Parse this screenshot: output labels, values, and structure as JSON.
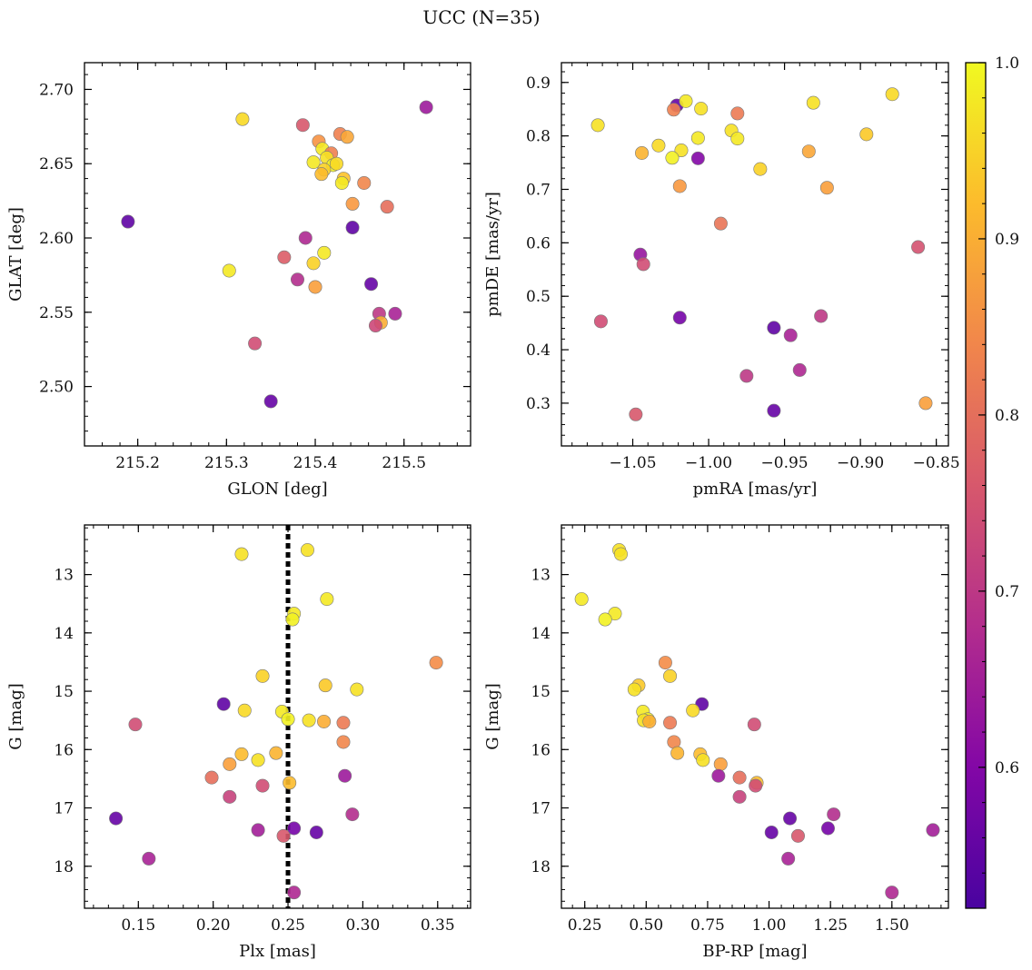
{
  "figure": {
    "title": "UCC (N=35)"
  },
  "colorbar": {
    "min": 0.52,
    "max": 1.0,
    "ticks": [
      0.6,
      0.7,
      0.8,
      0.9,
      1.0
    ],
    "tick_labels": [
      "0.6",
      "0.7",
      "0.8",
      "0.9",
      "1.0"
    ],
    "colormap": "plasma"
  },
  "chart_data": [
    {
      "type": "scatter",
      "id": "glon-glat",
      "title": "",
      "xlabel": "GLON [deg]",
      "ylabel": "GLAT [deg]",
      "xlim": [
        215.14,
        215.575
      ],
      "ylim": [
        2.46,
        2.718
      ],
      "xticks": [
        215.2,
        215.3,
        215.4,
        215.5
      ],
      "xtick_labels": [
        "215.2",
        "215.3",
        "215.4",
        "215.5"
      ],
      "yticks": [
        2.5,
        2.55,
        2.6,
        2.65,
        2.7
      ],
      "ytick_labels": [
        "2.50",
        "2.55",
        "2.60",
        "2.65",
        "2.70"
      ],
      "invert_y": false,
      "grid": false,
      "points": [
        {
          "x": 215.318,
          "y": 2.68,
          "c": 0.96
        },
        {
          "x": 215.386,
          "y": 2.676,
          "c": 0.76
        },
        {
          "x": 215.525,
          "y": 2.688,
          "c": 0.64
        },
        {
          "x": 215.428,
          "y": 2.67,
          "c": 0.83
        },
        {
          "x": 215.404,
          "y": 2.665,
          "c": 0.86
        },
        {
          "x": 215.436,
          "y": 2.668,
          "c": 0.89
        },
        {
          "x": 215.408,
          "y": 2.66,
          "c": 0.98
        },
        {
          "x": 215.418,
          "y": 2.657,
          "c": 0.83
        },
        {
          "x": 215.398,
          "y": 2.651,
          "c": 0.98
        },
        {
          "x": 215.413,
          "y": 2.654,
          "c": 0.97
        },
        {
          "x": 215.42,
          "y": 2.649,
          "c": 0.99
        },
        {
          "x": 215.424,
          "y": 2.65,
          "c": 0.96
        },
        {
          "x": 215.41,
          "y": 2.646,
          "c": 0.95
        },
        {
          "x": 215.407,
          "y": 2.643,
          "c": 0.92
        },
        {
          "x": 215.432,
          "y": 2.64,
          "c": 0.93
        },
        {
          "x": 215.43,
          "y": 2.637,
          "c": 0.98
        },
        {
          "x": 215.455,
          "y": 2.637,
          "c": 0.84
        },
        {
          "x": 215.442,
          "y": 2.623,
          "c": 0.87
        },
        {
          "x": 215.481,
          "y": 2.621,
          "c": 0.8
        },
        {
          "x": 215.189,
          "y": 2.611,
          "c": 0.55
        },
        {
          "x": 215.442,
          "y": 2.607,
          "c": 0.55
        },
        {
          "x": 215.389,
          "y": 2.6,
          "c": 0.67
        },
        {
          "x": 215.41,
          "y": 2.59,
          "c": 0.98
        },
        {
          "x": 215.365,
          "y": 2.587,
          "c": 0.77
        },
        {
          "x": 215.398,
          "y": 2.583,
          "c": 0.95
        },
        {
          "x": 215.303,
          "y": 2.578,
          "c": 0.98
        },
        {
          "x": 215.38,
          "y": 2.572,
          "c": 0.68
        },
        {
          "x": 215.4,
          "y": 2.567,
          "c": 0.88
        },
        {
          "x": 215.463,
          "y": 2.569,
          "c": 0.56
        },
        {
          "x": 215.472,
          "y": 2.549,
          "c": 0.7
        },
        {
          "x": 215.49,
          "y": 2.549,
          "c": 0.66
        },
        {
          "x": 215.474,
          "y": 2.543,
          "c": 0.9
        },
        {
          "x": 215.468,
          "y": 2.541,
          "c": 0.73
        },
        {
          "x": 215.332,
          "y": 2.529,
          "c": 0.74
        },
        {
          "x": 215.35,
          "y": 2.49,
          "c": 0.56
        }
      ]
    },
    {
      "type": "scatter",
      "id": "pm",
      "title": "",
      "xlabel": "pmRA [mas/yr]",
      "ylabel": "pmDE [mas/yr]",
      "xlim": [
        -1.097,
        -0.842
      ],
      "ylim": [
        0.22,
        0.937
      ],
      "xticks": [
        -1.05,
        -1.0,
        -0.95,
        -0.9,
        -0.85
      ],
      "xtick_labels": [
        "−1.05",
        "−1.00",
        "−0.95",
        "−0.90",
        "−0.85"
      ],
      "yticks": [
        0.3,
        0.4,
        0.5,
        0.6,
        0.7,
        0.8,
        0.9
      ],
      "ytick_labels": [
        "0.3",
        "0.4",
        "0.5",
        "0.6",
        "0.7",
        "0.8",
        "0.9"
      ],
      "invert_y": false,
      "grid": false,
      "points": [
        {
          "x": -1.021,
          "y": 0.857,
          "c": 0.56
        },
        {
          "x": -1.015,
          "y": 0.865,
          "c": 0.98
        },
        {
          "x": -1.023,
          "y": 0.849,
          "c": 0.83
        },
        {
          "x": -1.005,
          "y": 0.851,
          "c": 0.97
        },
        {
          "x": -0.981,
          "y": 0.842,
          "c": 0.82
        },
        {
          "x": -0.931,
          "y": 0.862,
          "c": 0.97
        },
        {
          "x": -0.879,
          "y": 0.878,
          "c": 0.96
        },
        {
          "x": -1.073,
          "y": 0.82,
          "c": 0.97
        },
        {
          "x": -0.985,
          "y": 0.81,
          "c": 0.97
        },
        {
          "x": -0.896,
          "y": 0.803,
          "c": 0.94
        },
        {
          "x": -1.007,
          "y": 0.796,
          "c": 0.98
        },
        {
          "x": -0.981,
          "y": 0.795,
          "c": 0.98
        },
        {
          "x": -1.033,
          "y": 0.782,
          "c": 0.96
        },
        {
          "x": -1.018,
          "y": 0.773,
          "c": 0.97
        },
        {
          "x": -1.044,
          "y": 0.768,
          "c": 0.91
        },
        {
          "x": -0.934,
          "y": 0.771,
          "c": 0.89
        },
        {
          "x": -1.024,
          "y": 0.759,
          "c": 0.99
        },
        {
          "x": -1.007,
          "y": 0.758,
          "c": 0.6
        },
        {
          "x": -0.966,
          "y": 0.738,
          "c": 0.95
        },
        {
          "x": -1.019,
          "y": 0.706,
          "c": 0.87
        },
        {
          "x": -0.922,
          "y": 0.703,
          "c": 0.88
        },
        {
          "x": -0.992,
          "y": 0.636,
          "c": 0.81
        },
        {
          "x": -0.862,
          "y": 0.592,
          "c": 0.75
        },
        {
          "x": -1.045,
          "y": 0.578,
          "c": 0.63
        },
        {
          "x": -1.043,
          "y": 0.56,
          "c": 0.74
        },
        {
          "x": -0.926,
          "y": 0.463,
          "c": 0.7
        },
        {
          "x": -1.019,
          "y": 0.46,
          "c": 0.58
        },
        {
          "x": -1.071,
          "y": 0.453,
          "c": 0.74
        },
        {
          "x": -0.957,
          "y": 0.441,
          "c": 0.55
        },
        {
          "x": -0.946,
          "y": 0.427,
          "c": 0.66
        },
        {
          "x": -0.94,
          "y": 0.362,
          "c": 0.67
        },
        {
          "x": -0.975,
          "y": 0.351,
          "c": 0.7
        },
        {
          "x": -0.857,
          "y": 0.3,
          "c": 0.88
        },
        {
          "x": -0.957,
          "y": 0.286,
          "c": 0.56
        },
        {
          "x": -1.048,
          "y": 0.279,
          "c": 0.76
        }
      ]
    },
    {
      "type": "scatter",
      "id": "plx-g",
      "title": "",
      "xlabel": "Plx [mas]",
      "ylabel": "G [mag]",
      "xlim": [
        0.114,
        0.372
      ],
      "ylim": [
        18.72,
        12.15
      ],
      "xticks": [
        0.15,
        0.2,
        0.25,
        0.3,
        0.35
      ],
      "xtick_labels": [
        "0.15",
        "0.20",
        "0.25",
        "0.30",
        "0.35"
      ],
      "yticks": [
        13,
        14,
        15,
        16,
        17,
        18
      ],
      "ytick_labels": [
        "13",
        "14",
        "15",
        "16",
        "17",
        "18"
      ],
      "invert_y": true,
      "grid": false,
      "vline": {
        "x": 0.25,
        "style": "dotted",
        "color": "#000000"
      },
      "points": [
        {
          "x": 0.263,
          "y": 12.58,
          "c": 0.97
        },
        {
          "x": 0.219,
          "y": 12.65,
          "c": 0.97
        },
        {
          "x": 0.276,
          "y": 13.42,
          "c": 0.98
        },
        {
          "x": 0.254,
          "y": 13.67,
          "c": 0.98
        },
        {
          "x": 0.253,
          "y": 13.77,
          "c": 0.99
        },
        {
          "x": 0.349,
          "y": 14.51,
          "c": 0.85
        },
        {
          "x": 0.233,
          "y": 14.74,
          "c": 0.95
        },
        {
          "x": 0.275,
          "y": 14.9,
          "c": 0.94
        },
        {
          "x": 0.296,
          "y": 14.97,
          "c": 0.97
        },
        {
          "x": 0.207,
          "y": 15.22,
          "c": 0.55
        },
        {
          "x": 0.221,
          "y": 15.33,
          "c": 0.96
        },
        {
          "x": 0.246,
          "y": 15.35,
          "c": 0.98
        },
        {
          "x": 0.25,
          "y": 15.48,
          "c": 0.99
        },
        {
          "x": 0.264,
          "y": 15.5,
          "c": 0.97
        },
        {
          "x": 0.274,
          "y": 15.52,
          "c": 0.9
        },
        {
          "x": 0.287,
          "y": 15.54,
          "c": 0.82
        },
        {
          "x": 0.148,
          "y": 15.57,
          "c": 0.74
        },
        {
          "x": 0.287,
          "y": 15.87,
          "c": 0.84
        },
        {
          "x": 0.242,
          "y": 16.06,
          "c": 0.91
        },
        {
          "x": 0.219,
          "y": 16.08,
          "c": 0.92
        },
        {
          "x": 0.23,
          "y": 16.18,
          "c": 0.97
        },
        {
          "x": 0.211,
          "y": 16.25,
          "c": 0.88
        },
        {
          "x": 0.288,
          "y": 16.45,
          "c": 0.64
        },
        {
          "x": 0.199,
          "y": 16.48,
          "c": 0.8
        },
        {
          "x": 0.251,
          "y": 16.57,
          "c": 0.92
        },
        {
          "x": 0.233,
          "y": 16.62,
          "c": 0.74
        },
        {
          "x": 0.211,
          "y": 16.81,
          "c": 0.72
        },
        {
          "x": 0.293,
          "y": 17.11,
          "c": 0.68
        },
        {
          "x": 0.135,
          "y": 17.18,
          "c": 0.56
        },
        {
          "x": 0.23,
          "y": 17.38,
          "c": 0.65
        },
        {
          "x": 0.254,
          "y": 17.35,
          "c": 0.58
        },
        {
          "x": 0.269,
          "y": 17.42,
          "c": 0.56
        },
        {
          "x": 0.247,
          "y": 17.48,
          "c": 0.76
        },
        {
          "x": 0.157,
          "y": 17.87,
          "c": 0.66
        },
        {
          "x": 0.254,
          "y": 18.45,
          "c": 0.67
        }
      ]
    },
    {
      "type": "scatter",
      "id": "cmd",
      "title": "",
      "xlabel": "BP-RP [mag]",
      "ylabel": "G [mag]",
      "xlim": [
        0.155,
        1.73
      ],
      "ylim": [
        18.72,
        12.15
      ],
      "xticks": [
        0.25,
        0.5,
        0.75,
        1.0,
        1.25,
        1.5
      ],
      "xtick_labels": [
        "0.25",
        "0.50",
        "0.75",
        "1.00",
        "1.25",
        "1.50"
      ],
      "yticks": [
        13,
        14,
        15,
        16,
        17,
        18
      ],
      "ytick_labels": [
        "13",
        "14",
        "15",
        "16",
        "17",
        "18"
      ],
      "invert_y": true,
      "grid": false,
      "points": [
        {
          "x": 0.39,
          "y": 12.58,
          "c": 0.97
        },
        {
          "x": 0.397,
          "y": 12.65,
          "c": 0.97
        },
        {
          "x": 0.237,
          "y": 13.42,
          "c": 0.98
        },
        {
          "x": 0.373,
          "y": 13.67,
          "c": 0.98
        },
        {
          "x": 0.333,
          "y": 13.77,
          "c": 0.99
        },
        {
          "x": 0.578,
          "y": 14.51,
          "c": 0.85
        },
        {
          "x": 0.597,
          "y": 14.74,
          "c": 0.95
        },
        {
          "x": 0.469,
          "y": 14.9,
          "c": 0.94
        },
        {
          "x": 0.452,
          "y": 14.97,
          "c": 0.97
        },
        {
          "x": 0.727,
          "y": 15.22,
          "c": 0.55
        },
        {
          "x": 0.69,
          "y": 15.33,
          "c": 0.96
        },
        {
          "x": 0.487,
          "y": 15.35,
          "c": 0.98
        },
        {
          "x": 0.507,
          "y": 15.48,
          "c": 0.99
        },
        {
          "x": 0.49,
          "y": 15.5,
          "c": 0.97
        },
        {
          "x": 0.513,
          "y": 15.52,
          "c": 0.9
        },
        {
          "x": 0.597,
          "y": 15.54,
          "c": 0.82
        },
        {
          "x": 0.94,
          "y": 15.57,
          "c": 0.74
        },
        {
          "x": 0.613,
          "y": 15.87,
          "c": 0.84
        },
        {
          "x": 0.627,
          "y": 16.06,
          "c": 0.91
        },
        {
          "x": 0.72,
          "y": 16.08,
          "c": 0.92
        },
        {
          "x": 0.731,
          "y": 16.18,
          "c": 0.97
        },
        {
          "x": 0.803,
          "y": 16.25,
          "c": 0.88
        },
        {
          "x": 0.794,
          "y": 16.45,
          "c": 0.64
        },
        {
          "x": 0.88,
          "y": 16.48,
          "c": 0.8
        },
        {
          "x": 0.95,
          "y": 16.57,
          "c": 0.92
        },
        {
          "x": 0.945,
          "y": 16.62,
          "c": 0.74
        },
        {
          "x": 0.88,
          "y": 16.81,
          "c": 0.72
        },
        {
          "x": 1.263,
          "y": 17.11,
          "c": 0.68
        },
        {
          "x": 1.085,
          "y": 17.18,
          "c": 0.56
        },
        {
          "x": 1.667,
          "y": 17.38,
          "c": 0.65
        },
        {
          "x": 1.24,
          "y": 17.35,
          "c": 0.58
        },
        {
          "x": 1.01,
          "y": 17.42,
          "c": 0.56
        },
        {
          "x": 1.118,
          "y": 17.48,
          "c": 0.76
        },
        {
          "x": 1.078,
          "y": 17.87,
          "c": 0.66
        },
        {
          "x": 1.5,
          "y": 18.45,
          "c": 0.67
        }
      ]
    }
  ]
}
